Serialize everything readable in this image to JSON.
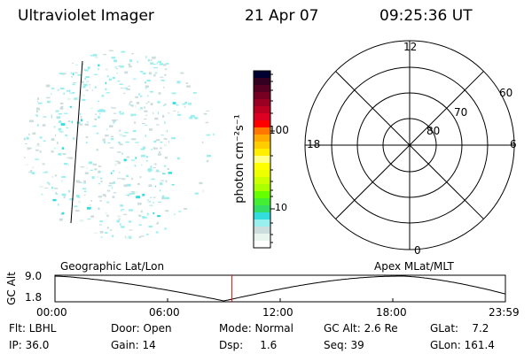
{
  "header": {
    "instrument": "Ultraviolet Imager",
    "date": "21 Apr 07",
    "time": "09:25:36 UT"
  },
  "colorbar": {
    "label": "photon cm⁻²s⁻¹",
    "ticks": [
      "100",
      "10"
    ],
    "colors": [
      "#000033",
      "#330022",
      "#550022",
      "#770022",
      "#990022",
      "#bb0022",
      "#dd0022",
      "#ff0000",
      "#ff7700",
      "#ffaa00",
      "#ffcc00",
      "#ffee00",
      "#ffff88",
      "#ffff00",
      "#eeff00",
      "#ccff00",
      "#aaff00",
      "#66ff00",
      "#44ee33",
      "#33dd66",
      "#33dddd",
      "#99eeee",
      "#ccdddd",
      "#e8f4ee",
      "#ffffff"
    ]
  },
  "polar": {
    "mlt_labels": {
      "top": "12",
      "left": "18",
      "right": "6",
      "bottom": "0"
    },
    "lat_labels": [
      "60",
      "70",
      "80"
    ]
  },
  "timeline": {
    "ylabel": "GC Alt",
    "ymax": "9.0",
    "ymin": "1.8",
    "left_title": "Geographic Lat/Lon",
    "right_title": "Apex MLat/MLT",
    "xticks": [
      "00:00",
      "06:00",
      "12:00",
      "18:00",
      "23:59"
    ],
    "current_time_hours": 9.43,
    "marker_color": "#ff0000"
  },
  "status": {
    "row1": [
      "Flt: LBHL",
      "Door: Open",
      "Mode: Normal",
      "GC Alt: 2.6 Re",
      "GLat:    7.2"
    ],
    "row2": [
      "IP: 36.0",
      "Gain: 14",
      "Dsp:     1.6",
      "Seq: 39",
      "GLon: 161.4"
    ]
  }
}
